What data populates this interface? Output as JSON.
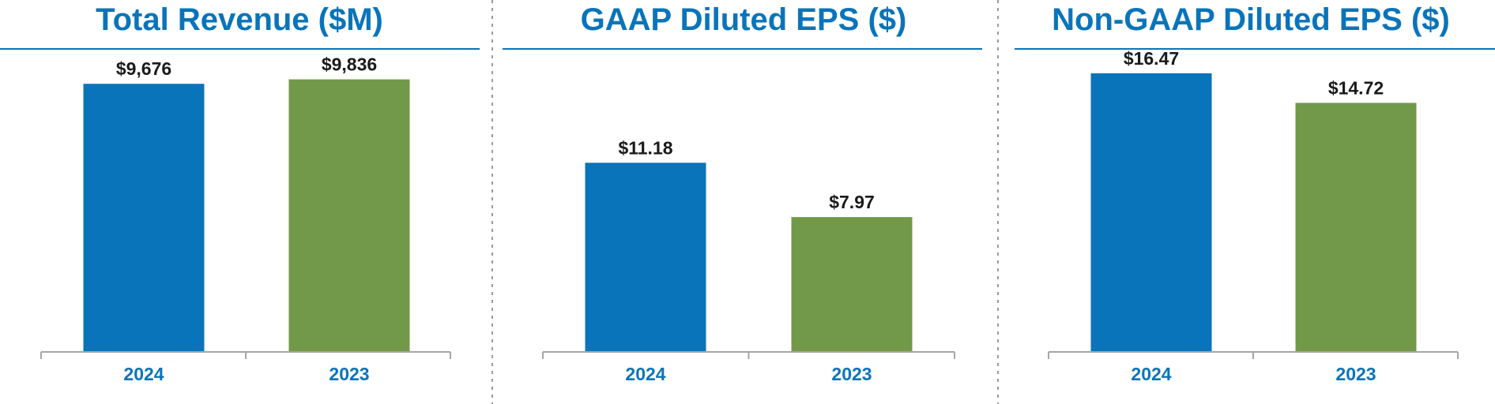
{
  "colors": {
    "title": "#0a74ba",
    "rule": "#0a74ba",
    "axis": "#a6a6a6",
    "divider": "#9a9a9a",
    "label": "#1a1a1a",
    "tick": "#0a74ba"
  },
  "chart_data": [
    {
      "type": "bar",
      "title": "Total Revenue ($M)",
      "categories": [
        "2024",
        "2023"
      ],
      "values": [
        9676,
        9836
      ],
      "value_labels": [
        "$9,676",
        "$9,836"
      ],
      "bar_colors": [
        "#0a74ba",
        "#72994a"
      ],
      "ylim": [
        0,
        12700
      ],
      "xlabel": "",
      "ylabel": "",
      "grid": false
    },
    {
      "type": "bar",
      "title": "GAAP Diluted EPS ($)",
      "categories": [
        "2024",
        "2023"
      ],
      "values": [
        11.18,
        7.97
      ],
      "value_labels": [
        "$11.18",
        "$7.97"
      ],
      "bar_colors": [
        "#0a74ba",
        "#72994a"
      ],
      "ylim": [
        0,
        20.8
      ],
      "xlabel": "",
      "ylabel": "",
      "grid": false
    },
    {
      "type": "bar",
      "title": "Non-GAAP Diluted EPS ($)",
      "categories": [
        "2024",
        "2023"
      ],
      "values": [
        16.47,
        14.72
      ],
      "value_labels": [
        "$16.47",
        "$14.72"
      ],
      "bar_colors": [
        "#0a74ba",
        "#72994a"
      ],
      "ylim": [
        0,
        20.8
      ],
      "xlabel": "",
      "ylabel": "",
      "grid": false
    }
  ]
}
